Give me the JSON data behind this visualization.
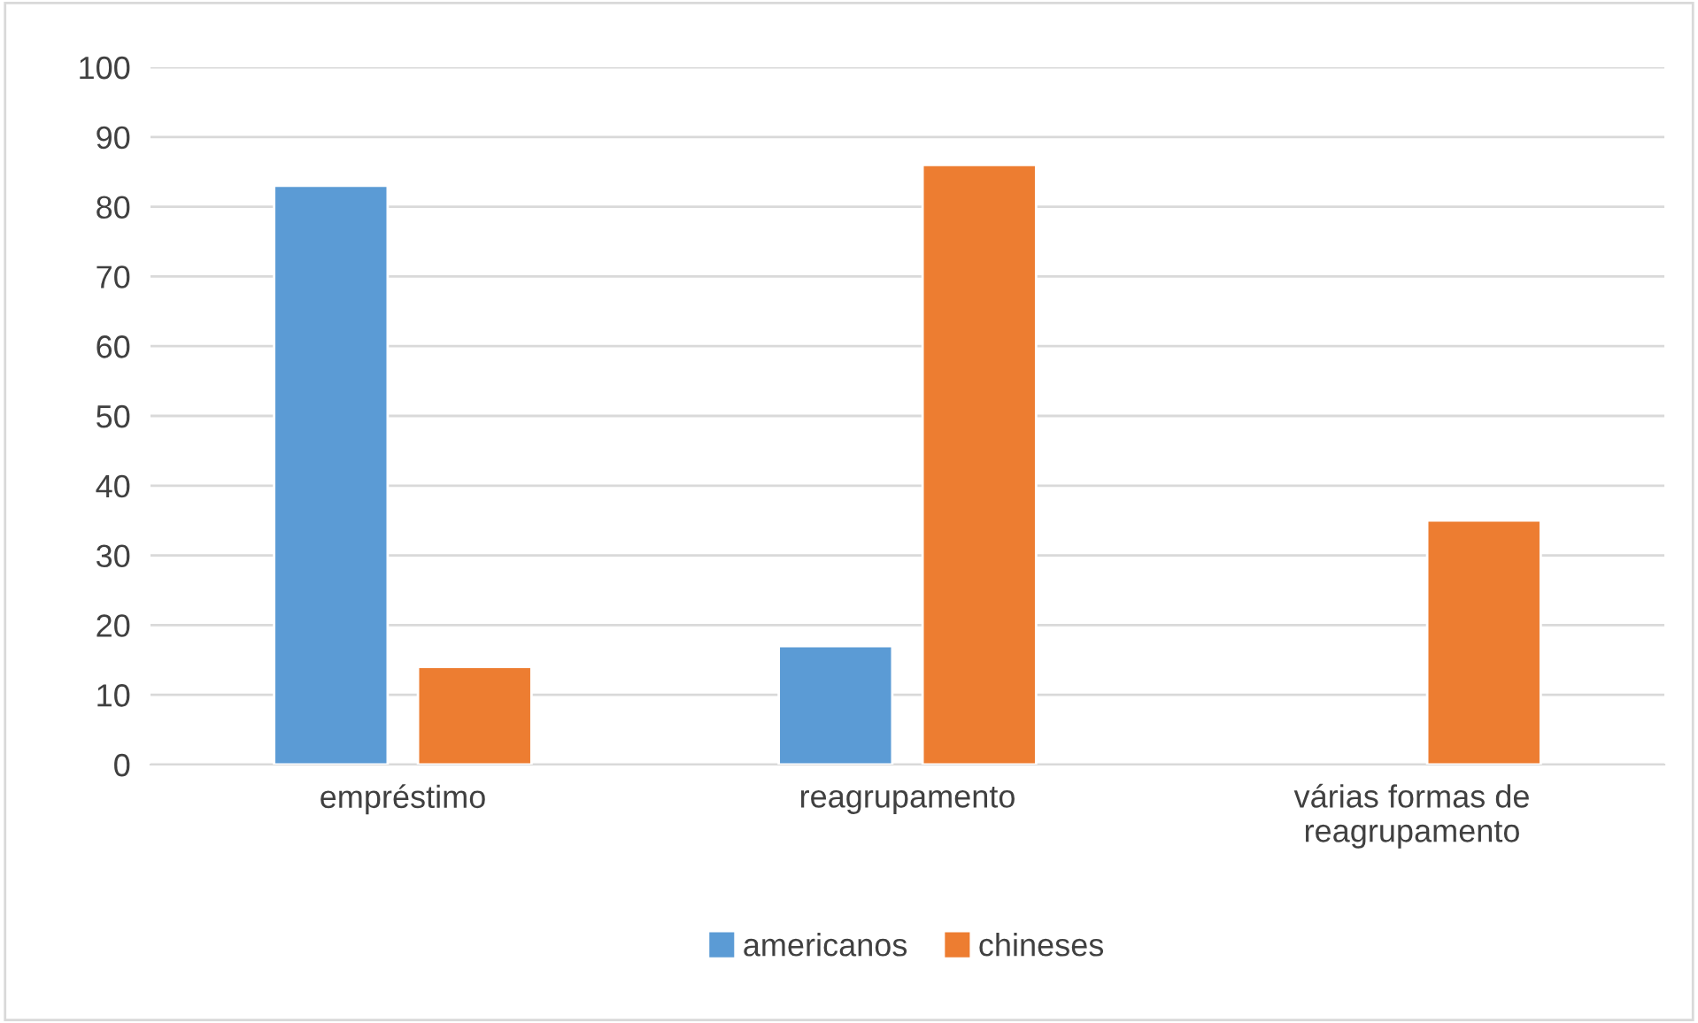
{
  "chart_data": {
    "type": "bar",
    "categories": [
      "empréstimo",
      "reagrupamento",
      "várias formas de\nreagrupamento"
    ],
    "series": [
      {
        "name": "americanos",
        "color": "#5b9bd5",
        "values": [
          83,
          17,
          null
        ]
      },
      {
        "name": "chineses",
        "color": "#ed7d31",
        "values": [
          14,
          86,
          35
        ]
      }
    ],
    "ylim": [
      0,
      100
    ],
    "yticks": [
      0,
      10,
      20,
      30,
      40,
      50,
      60,
      70,
      80,
      90,
      100
    ],
    "grid": "y",
    "legend": "bottom"
  }
}
